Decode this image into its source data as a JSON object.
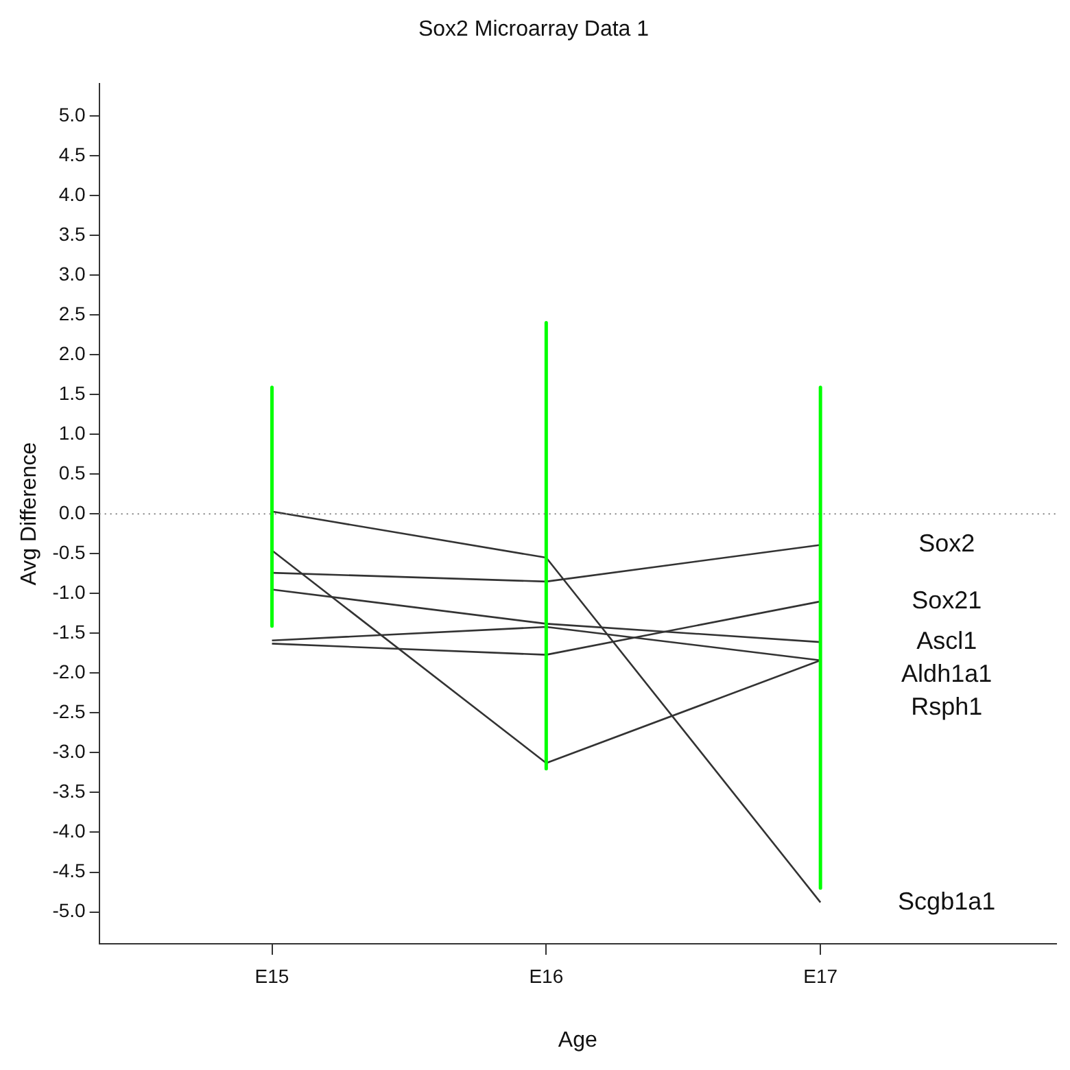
{
  "chart_data": {
    "type": "line",
    "title": "Sox2 Microarray Data 1",
    "xlabel": "Age",
    "ylabel": "Avg Difference",
    "categories": [
      "E15",
      "E16",
      "E17"
    ],
    "ylim": [
      -5.4,
      5.4
    ],
    "yticks": [
      {
        "value": 5,
        "label": "5.0"
      },
      {
        "value": 4.5,
        "label": "4.5"
      },
      {
        "value": 4,
        "label": "4.0"
      },
      {
        "value": 3.5,
        "label": "3.5"
      },
      {
        "value": 3,
        "label": "3.0"
      },
      {
        "value": 2.5,
        "label": "2.5"
      },
      {
        "value": 2,
        "label": "2.0"
      },
      {
        "value": 1.5,
        "label": "1.5"
      },
      {
        "value": 1,
        "label": "1.0"
      },
      {
        "value": 0.5,
        "label": "0.5"
      },
      {
        "value": 0,
        "label": "0.0"
      },
      {
        "value": -0.5,
        "label": "-0.5"
      },
      {
        "value": -1,
        "label": "-1.0"
      },
      {
        "value": -1.5,
        "label": "-1.5"
      },
      {
        "value": -2,
        "label": "-2.0"
      },
      {
        "value": -2.5,
        "label": "-2.5"
      },
      {
        "value": -3,
        "label": "-3.0"
      },
      {
        "value": -3.5,
        "label": "-3.5"
      },
      {
        "value": -4,
        "label": "-4.0"
      },
      {
        "value": -4.5,
        "label": "-4.5"
      },
      {
        "value": -5,
        "label": "-5.0"
      }
    ],
    "grid": false,
    "legend": false,
    "marker": "none",
    "line_style": "solid",
    "ref_lines": [
      {
        "axis": "y",
        "value": 0,
        "color": "#808080",
        "line_style": "dotted"
      }
    ],
    "series": [
      {
        "color": "#00ff00",
        "x": [
          "E15",
          "E15"
        ],
        "values": [
          1.59,
          -1.41
        ]
      },
      {
        "color": "#00ff00",
        "x": [
          "E16",
          "E16"
        ],
        "values": [
          2.4,
          -3.2
        ]
      },
      {
        "color": "#00ff00",
        "x": [
          "E17",
          "E17"
        ],
        "values": [
          1.59,
          -4.7
        ]
      },
      {
        "name": "Sox2",
        "color": "#333333",
        "values": [
          -0.74,
          -0.85,
          -0.39
        ]
      },
      {
        "name": "Sox21",
        "color": "#333333",
        "values": [
          -1.63,
          -1.77,
          -1.1
        ]
      },
      {
        "name": "Ascl1",
        "color": "#333333",
        "values": [
          -0.95,
          -1.38,
          -1.61
        ]
      },
      {
        "name": "Aldh1a1",
        "color": "#333333",
        "values": [
          -1.59,
          -1.42,
          -1.84
        ]
      },
      {
        "name": "Rsph1",
        "color": "#333333",
        "values": [
          -0.46,
          -3.13,
          -1.84
        ]
      },
      {
        "name": "Scgb1a1",
        "color": "#333333",
        "values": [
          0.03,
          -0.55,
          -4.88
        ]
      }
    ]
  }
}
